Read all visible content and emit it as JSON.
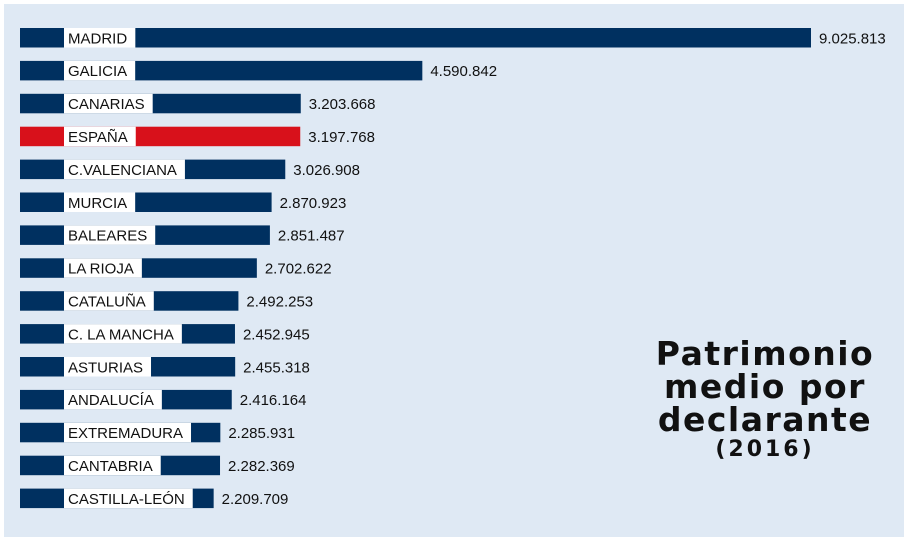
{
  "chart_data": {
    "type": "bar",
    "orientation": "horizontal",
    "title_lines": [
      "Patrimonio",
      "medio por",
      "declarante"
    ],
    "subtitle": "(2016)",
    "categories": [
      "MADRID",
      "GALICIA",
      "CANARIAS",
      "ESPAÑA",
      "C.VALENCIANA",
      "MURCIA",
      "BALEARES",
      "LA RIOJA",
      "CATALUÑA",
      "C. LA MANCHA",
      "ASTURIAS",
      "ANDALUCÍA",
      "EXTREMADURA",
      "CANTABRIA",
      "CASTILLA-LEÓN"
    ],
    "values": [
      9025813,
      4590842,
      3203668,
      3197768,
      3026908,
      2870923,
      2851487,
      2702622,
      2492253,
      2452945,
      2455318,
      2416164,
      2285931,
      2282369,
      2209709
    ],
    "value_labels": [
      "9.025.813",
      "4.590.842",
      "3.203.668",
      "3.197.768",
      "3.026.908",
      "2.870.923",
      "2.851.487",
      "2.702.622",
      "2.492.253",
      "2.452.945",
      "2.455.318",
      "2.416.164",
      "2.285.931",
      "2.282.369",
      "2.209.709"
    ],
    "highlight_category": "ESPAÑA",
    "colors": {
      "bar": "#003060",
      "highlight": "#d8111b",
      "label_background": "#ffffff",
      "panel_background": "#dfe9f4"
    },
    "grid": false,
    "legend": "none"
  }
}
